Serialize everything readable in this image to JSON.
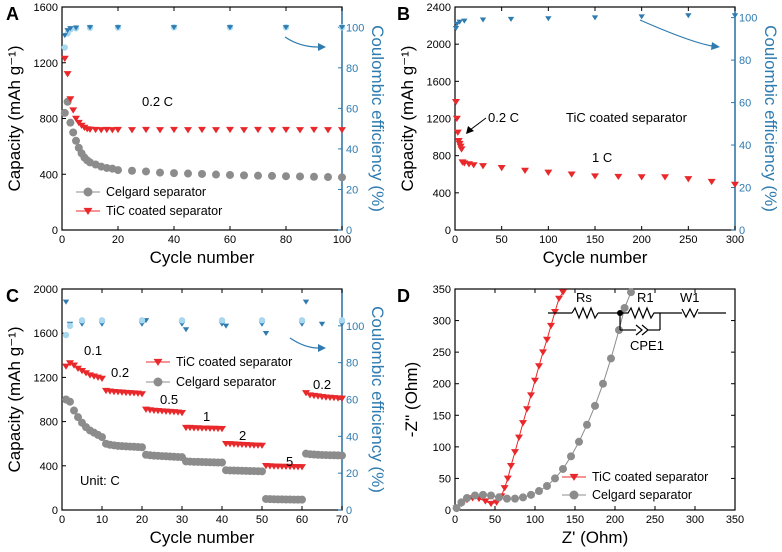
{
  "chart_data": [
    {
      "panel": "A",
      "type": "scatter",
      "xlabel": "Cycle number",
      "ylabel": "Capacity (mAh g⁻¹)",
      "ylabel_right": "Coulombic efficiency (%)",
      "xlim": [
        0,
        100
      ],
      "ylim": [
        0,
        1600
      ],
      "y2lim": [
        0,
        110
      ],
      "xticks": [
        0,
        20,
        40,
        60,
        80,
        100
      ],
      "yticks": [
        0,
        400,
        800,
        1200,
        1600
      ],
      "y2ticks": [
        0,
        20,
        40,
        60,
        80,
        100
      ],
      "annotations": [
        "0.2 C"
      ],
      "legend": [
        "Celgard separator",
        "TiC coated separator"
      ],
      "series": [
        {
          "name": "Celgard separator",
          "color": "#8c8c8c",
          "marker": "circle",
          "axis": "left",
          "x": [
            1,
            2,
            3,
            4,
            5,
            6,
            7,
            8,
            9,
            10,
            12,
            14,
            16,
            18,
            20,
            25,
            30,
            35,
            40,
            45,
            50,
            55,
            60,
            65,
            70,
            75,
            80,
            85,
            90,
            95,
            100
          ],
          "y": [
            840,
            920,
            770,
            700,
            640,
            590,
            550,
            520,
            500,
            485,
            470,
            455,
            445,
            440,
            430,
            425,
            420,
            412,
            408,
            405,
            402,
            398,
            395,
            392,
            390,
            388,
            386,
            384,
            382,
            380,
            378
          ]
        },
        {
          "name": "TiC coated separator",
          "color": "#e8282b",
          "marker": "triangle-down",
          "axis": "left",
          "x": [
            1,
            2,
            3,
            4,
            5,
            6,
            7,
            8,
            9,
            10,
            12,
            14,
            16,
            18,
            20,
            25,
            30,
            35,
            40,
            45,
            50,
            55,
            60,
            65,
            70,
            75,
            80,
            85,
            90,
            95,
            100
          ],
          "y": [
            1230,
            1120,
            940,
            860,
            800,
            770,
            750,
            735,
            725,
            722,
            720,
            718,
            720,
            718,
            720,
            718,
            720,
            718,
            720,
            718,
            720,
            718,
            720,
            718,
            720,
            718,
            720,
            718,
            720,
            718,
            718
          ]
        },
        {
          "name": "Coulombic efficiency (Celgard)",
          "color": "#a8d8f0",
          "marker": "circle",
          "axis": "right",
          "x": [
            1,
            2,
            3,
            5,
            10,
            20,
            40,
            60,
            80,
            100
          ],
          "y": [
            90,
            97,
            99,
            99.5,
            99.8,
            99.9,
            100,
            100,
            100,
            100
          ]
        },
        {
          "name": "Coulombic efficiency (TiC)",
          "color": "#2e7bb0",
          "marker": "triangle-down",
          "axis": "right",
          "x": [
            1,
            2,
            3,
            5,
            10,
            20,
            40,
            60,
            80,
            100
          ],
          "y": [
            96,
            98.5,
            99.5,
            99.8,
            100,
            100,
            100,
            100,
            100,
            100
          ]
        }
      ]
    },
    {
      "panel": "B",
      "type": "scatter",
      "xlabel": "Cycle number",
      "ylabel": "Capacity (mAh g⁻¹)",
      "ylabel_right": "Coulombic efficiency (%)",
      "xlim": [
        0,
        300
      ],
      "ylim": [
        0,
        2400
      ],
      "y2lim": [
        0,
        105
      ],
      "xticks": [
        0,
        50,
        100,
        150,
        200,
        250,
        300
      ],
      "yticks": [
        0,
        400,
        800,
        1200,
        1600,
        2000,
        2400
      ],
      "y2ticks": [
        0,
        20,
        40,
        60,
        80,
        100
      ],
      "annotations": [
        "0.2 C",
        "TiC coated separator",
        "1 C"
      ],
      "series": [
        {
          "name": "TiC coated separator capacity",
          "color": "#e8282b",
          "marker": "triangle-down",
          "axis": "left",
          "x": [
            1,
            2,
            3,
            4,
            5,
            6,
            7,
            8,
            10,
            15,
            20,
            30,
            50,
            75,
            100,
            125,
            150,
            175,
            200,
            225,
            250,
            275,
            300
          ],
          "y": [
            1380,
            1200,
            1050,
            960,
            930,
            900,
            870,
            730,
            720,
            710,
            700,
            690,
            670,
            640,
            620,
            600,
            580,
            575,
            570,
            570,
            550,
            520,
            490
          ]
        },
        {
          "name": "Coulombic efficiency",
          "color": "#2e7bb0",
          "marker": "triangle-down",
          "axis": "right",
          "x": [
            1,
            2,
            5,
            10,
            30,
            60,
            100,
            150,
            200,
            250,
            300
          ],
          "y": [
            95,
            97,
            98,
            98.5,
            99,
            99.3,
            99.6,
            100,
            100.5,
            101,
            101
          ]
        }
      ]
    },
    {
      "panel": "C",
      "type": "scatter",
      "xlabel": "Cycle number",
      "ylabel": "Capacity (mAh g⁻¹)",
      "ylabel_right": "Coulombic efficiency (%)",
      "xlim": [
        0,
        70
      ],
      "ylim": [
        0,
        2000
      ],
      "y2lim": [
        0,
        120
      ],
      "xticks": [
        0,
        10,
        20,
        30,
        40,
        50,
        60,
        70
      ],
      "yticks": [
        0,
        400,
        800,
        1200,
        1600,
        2000
      ],
      "y2ticks": [
        0,
        20,
        40,
        60,
        80,
        100
      ],
      "rate_labels": [
        "0.1",
        "0.2",
        "0.5",
        "1",
        "2",
        "5",
        "0.2"
      ],
      "unit_note": "Unit: C",
      "legend": [
        "TiC coated separator",
        "Celgard separator"
      ],
      "series": [
        {
          "name": "TiC coated separator",
          "color": "#e8282b",
          "marker": "triangle-down",
          "axis": "left",
          "x": [
            1,
            2,
            3,
            4,
            5,
            6,
            7,
            8,
            9,
            10,
            11,
            12,
            13,
            14,
            15,
            16,
            17,
            18,
            19,
            20,
            21,
            22,
            23,
            24,
            25,
            26,
            27,
            28,
            29,
            30,
            31,
            32,
            33,
            34,
            35,
            36,
            37,
            38,
            39,
            40,
            41,
            42,
            43,
            44,
            45,
            46,
            47,
            48,
            49,
            50,
            51,
            52,
            53,
            54,
            55,
            56,
            57,
            58,
            59,
            60,
            61,
            62,
            63,
            64,
            65,
            66,
            67,
            68,
            69,
            70
          ],
          "y": [
            1300,
            1330,
            1310,
            1280,
            1260,
            1240,
            1220,
            1210,
            1200,
            1190,
            1080,
            1075,
            1070,
            1068,
            1065,
            1062,
            1060,
            1058,
            1055,
            1050,
            910,
            905,
            900,
            898,
            895,
            892,
            890,
            888,
            885,
            880,
            745,
            745,
            742,
            742,
            740,
            740,
            738,
            738,
            736,
            735,
            600,
            598,
            596,
            594,
            592,
            590,
            588,
            586,
            585,
            584,
            400,
            398,
            396,
            395,
            394,
            393,
            392,
            391,
            390,
            390,
            1060,
            1040,
            1035,
            1030,
            1025,
            1020,
            1018,
            1015,
            1012,
            1010
          ]
        },
        {
          "name": "Celgard separator",
          "color": "#8c8c8c",
          "marker": "circle",
          "axis": "left",
          "x": [
            1,
            2,
            3,
            4,
            5,
            6,
            7,
            8,
            9,
            10,
            11,
            12,
            13,
            14,
            15,
            16,
            17,
            18,
            19,
            20,
            21,
            22,
            23,
            24,
            25,
            26,
            27,
            28,
            29,
            30,
            31,
            32,
            33,
            34,
            35,
            36,
            37,
            38,
            39,
            40,
            41,
            42,
            43,
            44,
            45,
            46,
            47,
            48,
            49,
            50,
            51,
            52,
            53,
            54,
            55,
            56,
            57,
            58,
            59,
            60,
            61,
            62,
            63,
            64,
            65,
            66,
            67,
            68,
            69,
            70
          ],
          "y": [
            1000,
            980,
            900,
            840,
            790,
            750,
            720,
            700,
            680,
            660,
            600,
            590,
            585,
            580,
            578,
            576,
            574,
            572,
            570,
            568,
            500,
            495,
            492,
            490,
            488,
            486,
            484,
            482,
            480,
            478,
            440,
            438,
            436,
            435,
            434,
            433,
            432,
            431,
            430,
            430,
            360,
            358,
            357,
            356,
            355,
            354,
            353,
            352,
            351,
            350,
            100,
            98,
            97,
            96,
            96,
            95,
            95,
            94,
            94,
            94,
            510,
            505,
            502,
            500,
            498,
            497,
            496,
            495,
            494,
            493
          ]
        },
        {
          "name": "Coulombic efficiency (TiC)",
          "color": "#2e7bb0",
          "marker": "triangle-down",
          "axis": "right",
          "x": [
            1,
            2,
            5,
            10,
            20,
            21,
            30,
            31,
            40,
            41,
            50,
            51,
            60,
            61,
            65,
            70
          ],
          "y": [
            113,
            101,
            101,
            101,
            101,
            103,
            101,
            98,
            101,
            100,
            101,
            96,
            101,
            113,
            101,
            101
          ]
        },
        {
          "name": "Coulombic efficiency (Celgard)",
          "color": "#a8d8f0",
          "marker": "circle",
          "axis": "right",
          "x": [
            1,
            2,
            5,
            10,
            20,
            30,
            40,
            50,
            60,
            70
          ],
          "y": [
            95,
            100,
            103,
            103,
            103,
            103,
            103,
            103,
            103,
            103
          ]
        }
      ]
    },
    {
      "panel": "D",
      "type": "scatter",
      "xlabel": "Z' (Ohm)",
      "ylabel": "-Z'' (Ohm)",
      "xlim": [
        0,
        350
      ],
      "ylim": [
        0,
        350
      ],
      "xticks": [
        0,
        50,
        100,
        150,
        200,
        250,
        300,
        350
      ],
      "yticks": [
        0,
        50,
        100,
        150,
        200,
        250,
        300,
        350
      ],
      "circuit_labels": [
        "Rs",
        "R1",
        "W1",
        "CPE1"
      ],
      "legend": [
        "TiC coated separator",
        "Celgard separator"
      ],
      "series": [
        {
          "name": "TiC coated separator",
          "color": "#e8282b",
          "marker": "triangle-down",
          "x": [
            2,
            8,
            15,
            22,
            30,
            38,
            45,
            52,
            58,
            62,
            66,
            70,
            75,
            80,
            85,
            90,
            95,
            100,
            105,
            110,
            115,
            120,
            125,
            130,
            135
          ],
          "y": [
            3,
            10,
            16,
            19,
            18,
            14,
            10,
            12,
            22,
            35,
            50,
            70,
            92,
            115,
            138,
            160,
            182,
            205,
            228,
            250,
            270,
            292,
            314,
            335,
            345
          ]
        },
        {
          "name": "Celgard separator",
          "color": "#8c8c8c",
          "marker": "circle",
          "x": [
            2,
            8,
            15,
            25,
            35,
            45,
            55,
            65,
            75,
            85,
            95,
            105,
            115,
            125,
            135,
            145,
            155,
            165,
            175,
            185,
            195,
            205,
            212,
            220
          ],
          "y": [
            3,
            12,
            19,
            23,
            24,
            23,
            20,
            18,
            18,
            20,
            24,
            30,
            38,
            50,
            65,
            85,
            108,
            135,
            165,
            200,
            240,
            285,
            320,
            345
          ]
        }
      ]
    }
  ]
}
